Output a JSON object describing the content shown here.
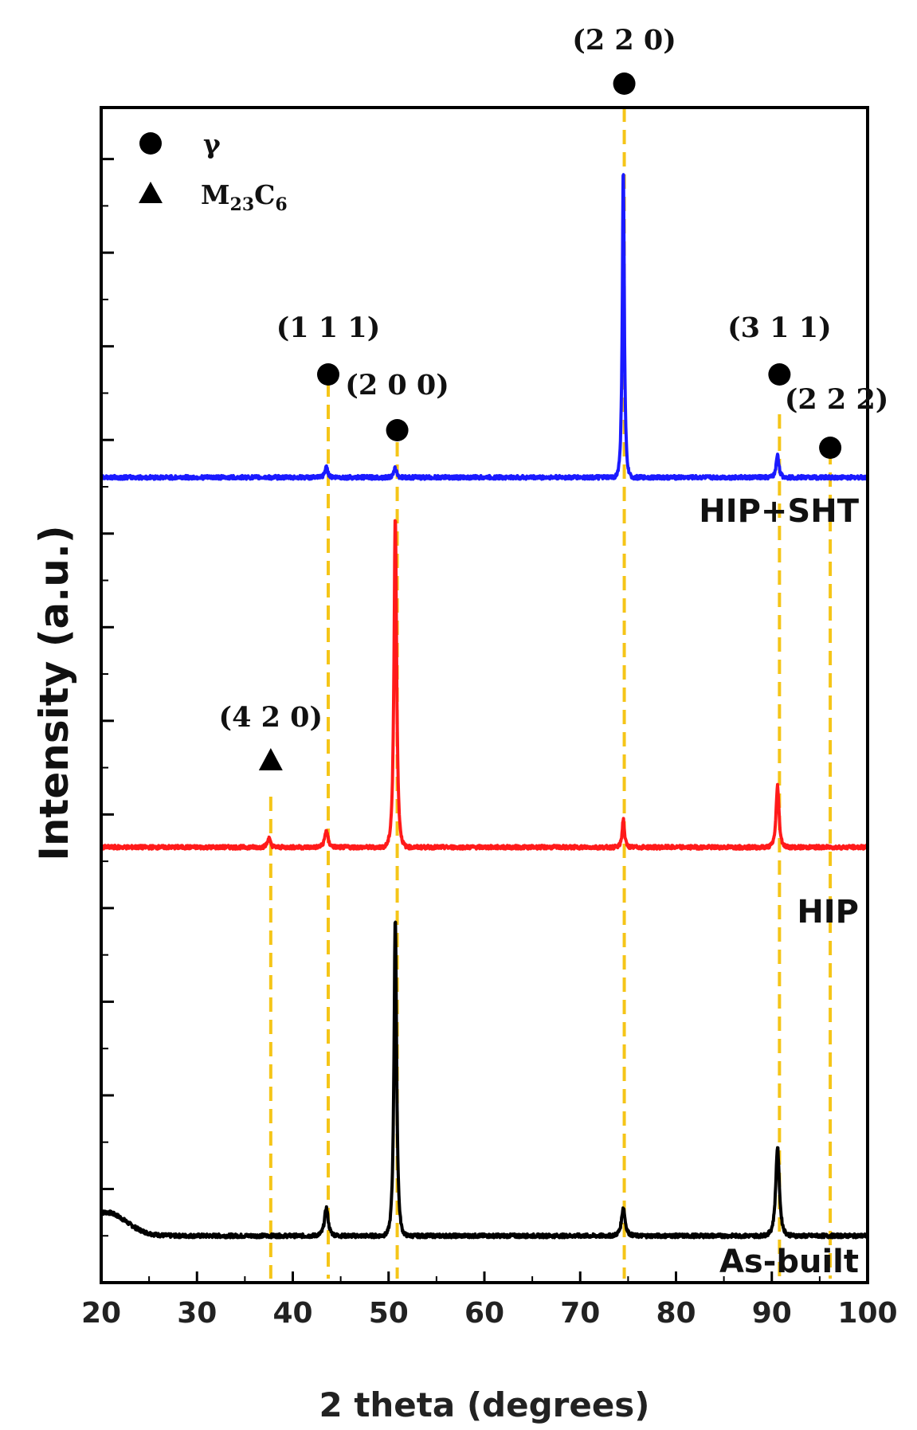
{
  "chart_data": {
    "type": "line",
    "xlabel": "2 theta (degrees)",
    "ylabel": "Intensity (a.u.)",
    "xlim": [
      20,
      100
    ],
    "x_ticks": [
      "20",
      "30",
      "40",
      "50",
      "60",
      "70",
      "80",
      "90",
      "100"
    ],
    "series": [
      {
        "name": "As-built",
        "color": "#000000",
        "baseline": 0.5,
        "peaks": [
          {
            "x": 43.5,
            "height": 0.3,
            "width": 0.25
          },
          {
            "x": 50.7,
            "height": 3.4,
            "width": 0.18
          },
          {
            "x": 74.5,
            "height": 0.3,
            "width": 0.25
          },
          {
            "x": 90.6,
            "height": 0.95,
            "width": 0.25
          }
        ],
        "hump": {
          "x": 20.5,
          "height": 0.25,
          "width": 3.0
        }
      },
      {
        "name": "HIP",
        "color": "#ff1a1a",
        "baseline": 4.65,
        "peaks": [
          {
            "x": 37.5,
            "height": 0.1,
            "width": 0.2
          },
          {
            "x": 43.5,
            "height": 0.18,
            "width": 0.22
          },
          {
            "x": 50.7,
            "height": 3.55,
            "width": 0.18
          },
          {
            "x": 74.5,
            "height": 0.3,
            "width": 0.16
          },
          {
            "x": 90.6,
            "height": 0.66,
            "width": 0.2
          }
        ]
      },
      {
        "name": "HIP+SHT",
        "color": "#1a1aff",
        "baseline": 8.6,
        "peaks": [
          {
            "x": 43.5,
            "height": 0.12,
            "width": 0.18
          },
          {
            "x": 50.7,
            "height": 0.1,
            "width": 0.18
          },
          {
            "x": 74.5,
            "height": 3.3,
            "width": 0.14
          },
          {
            "x": 90.6,
            "height": 0.25,
            "width": 0.18
          }
        ]
      }
    ],
    "reference_lines": [
      {
        "x": 37.7,
        "phase": "M23C6",
        "label": "(4 2 0)"
      },
      {
        "x": 43.7,
        "phase": "γ",
        "label": "(1 1 1)"
      },
      {
        "x": 50.9,
        "phase": "γ",
        "label": "(2 0 0)"
      },
      {
        "x": 74.6,
        "phase": "γ",
        "label": "(2 2 0)"
      },
      {
        "x": 90.8,
        "phase": "γ",
        "label": "(3 1 1)"
      },
      {
        "x": 96.1,
        "phase": "γ",
        "label": "(2 2 2)"
      }
    ],
    "legend": {
      "position": "top-left",
      "entries": [
        {
          "marker": "circle",
          "label": "γ"
        },
        {
          "marker": "triangle",
          "label": "M",
          "sub1": "23",
          "mid": "C",
          "sub2": "6"
        }
      ]
    },
    "reference_color": "#f5c518"
  }
}
